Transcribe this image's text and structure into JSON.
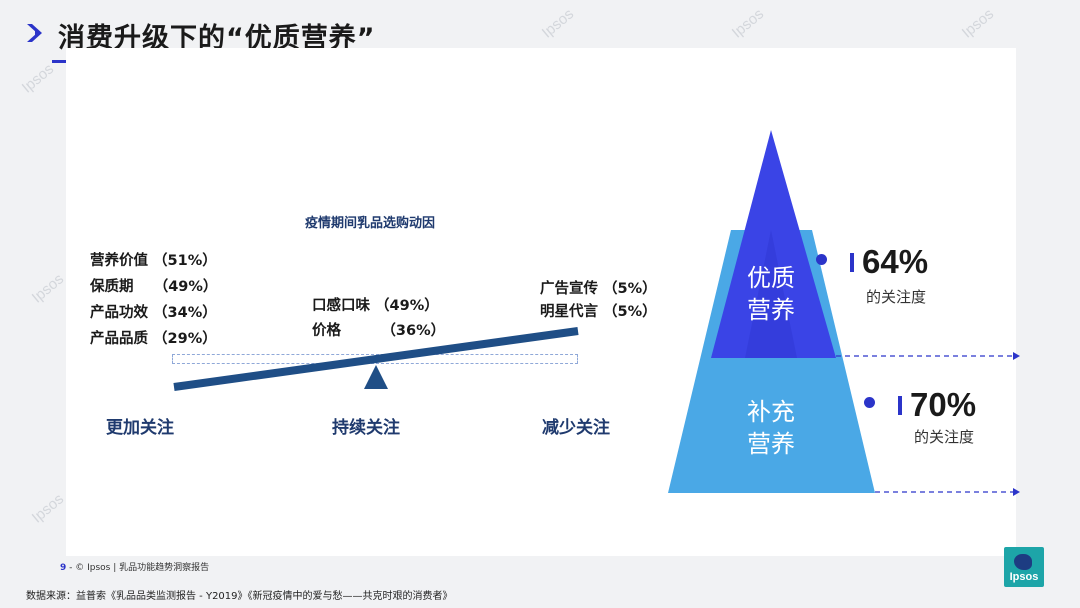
{
  "slide": {
    "title": "消费升级下的“优质营养”",
    "accent_color": "#2b34c9"
  },
  "watermark": {
    "text": "Ipsos"
  },
  "balance": {
    "caption": "疫情期间乳品选购动因",
    "more_attention": {
      "label": "更加关注",
      "items": [
        "营养价值 （51%）",
        "保质期    （49%）",
        "产品功效 （34%）",
        "产品品质 （29%）"
      ]
    },
    "continued_attention": {
      "label": "持续关注",
      "items": [
        "口感口味 （49%）",
        "价格        （36%）"
      ]
    },
    "less_attention": {
      "label": "减少关注",
      "items": [
        "广告宣传 （5%）",
        "明星代言 （5%）"
      ]
    }
  },
  "pyramid": {
    "top": {
      "label_line1": "优质",
      "label_line2": "营养",
      "percent": "64%",
      "note": "的关注度",
      "color": "#3a44e6"
    },
    "bottom": {
      "label_line1": "补充",
      "label_line2": "营养",
      "percent": "70%",
      "note": "的关注度",
      "color": "#4aa8e6"
    }
  },
  "footer": {
    "page_number": "9",
    "copyright": "- © Ipsos | 乳品功能趋势洞察报告",
    "source": "数据来源：益普索《乳品品类监测报告 - Y2019》《新冠疫情中的爱与愁——共克时艰的消费者》",
    "logo_text": "Ipsos"
  }
}
